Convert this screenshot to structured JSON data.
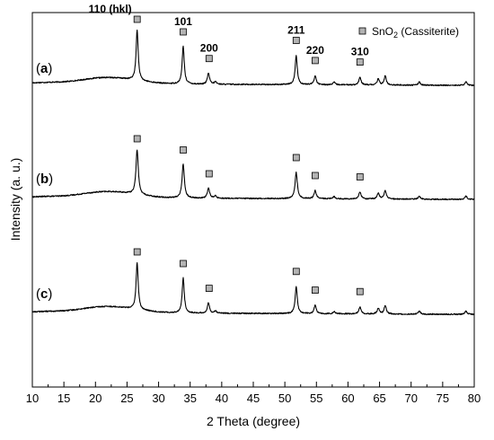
{
  "chart_data": {
    "type": "line",
    "xlabel": "2 Theta (degree)",
    "ylabel": "Intensity (a. u.)",
    "xlim": [
      10,
      80
    ],
    "x_ticks": [
      10,
      15,
      20,
      25,
      30,
      35,
      40,
      45,
      50,
      55,
      60,
      65,
      70,
      75,
      80
    ],
    "y_ticks": "none",
    "grid": false,
    "legend": {
      "position": "top-right",
      "marker": "square",
      "marker_color": "#b3b3b3",
      "prefix": "SnO",
      "subscript": "2",
      "suffix": " (Cassiterite)"
    },
    "reflections": [
      {
        "two_theta": 26.6,
        "hkl": "110 (hkl)"
      },
      {
        "two_theta": 33.9,
        "hkl": "101"
      },
      {
        "two_theta": 38.0,
        "hkl": "200"
      },
      {
        "two_theta": 51.8,
        "hkl": "211"
      },
      {
        "two_theta": 54.8,
        "hkl": "220"
      },
      {
        "two_theta": 61.9,
        "hkl": "310"
      }
    ],
    "series": [
      {
        "label_open": "(",
        "label_letter": "a",
        "label_close": ")",
        "peaks": [
          {
            "two_theta": 26.6,
            "height": 1.0
          },
          {
            "two_theta": 33.9,
            "height": 0.75
          },
          {
            "two_theta": 37.9,
            "height": 0.22
          },
          {
            "two_theta": 39.0,
            "height": 0.05
          },
          {
            "two_theta": 51.8,
            "height": 0.58
          },
          {
            "two_theta": 54.8,
            "height": 0.18
          },
          {
            "two_theta": 57.8,
            "height": 0.05
          },
          {
            "two_theta": 61.9,
            "height": 0.15
          },
          {
            "two_theta": 64.8,
            "height": 0.12
          },
          {
            "two_theta": 65.9,
            "height": 0.18
          },
          {
            "two_theta": 71.3,
            "height": 0.06
          },
          {
            "two_theta": 78.7,
            "height": 0.07
          }
        ]
      },
      {
        "label_open": "(",
        "label_letter": "b",
        "label_close": ")",
        "peaks": [
          {
            "two_theta": 26.6,
            "height": 1.0
          },
          {
            "two_theta": 33.9,
            "height": 0.75
          },
          {
            "two_theta": 37.9,
            "height": 0.22
          },
          {
            "two_theta": 39.0,
            "height": 0.05
          },
          {
            "two_theta": 51.8,
            "height": 0.58
          },
          {
            "two_theta": 54.8,
            "height": 0.18
          },
          {
            "two_theta": 57.8,
            "height": 0.05
          },
          {
            "two_theta": 61.9,
            "height": 0.15
          },
          {
            "two_theta": 64.8,
            "height": 0.12
          },
          {
            "two_theta": 65.9,
            "height": 0.18
          },
          {
            "two_theta": 71.3,
            "height": 0.06
          },
          {
            "two_theta": 78.7,
            "height": 0.07
          }
        ]
      },
      {
        "label_open": "(",
        "label_letter": "c",
        "label_close": ")",
        "peaks": [
          {
            "two_theta": 26.6,
            "height": 1.0
          },
          {
            "two_theta": 33.9,
            "height": 0.75
          },
          {
            "two_theta": 37.9,
            "height": 0.22
          },
          {
            "two_theta": 39.0,
            "height": 0.05
          },
          {
            "two_theta": 51.8,
            "height": 0.58
          },
          {
            "two_theta": 54.8,
            "height": 0.18
          },
          {
            "two_theta": 57.8,
            "height": 0.05
          },
          {
            "two_theta": 61.9,
            "height": 0.15
          },
          {
            "two_theta": 64.8,
            "height": 0.12
          },
          {
            "two_theta": 65.9,
            "height": 0.18
          },
          {
            "two_theta": 71.3,
            "height": 0.06
          },
          {
            "two_theta": 78.7,
            "height": 0.07
          }
        ]
      }
    ]
  }
}
